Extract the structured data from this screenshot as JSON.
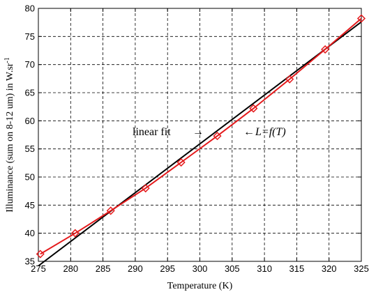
{
  "chart_data": {
    "type": "line",
    "title": "",
    "xlabel": "Temperature (K)",
    "ylabel": "Illuminance (sum on 8-12 um) in W.sr",
    "ylabel_superscript": "-1",
    "xlim": [
      275,
      325
    ],
    "ylim": [
      35,
      80
    ],
    "x_ticks": [
      275,
      280,
      285,
      290,
      295,
      300,
      305,
      310,
      315,
      320,
      325
    ],
    "y_ticks": [
      35,
      40,
      45,
      50,
      55,
      60,
      65,
      70,
      75,
      80
    ],
    "grid": true,
    "series": [
      {
        "color": "#e41a1c",
        "marker": "diamond",
        "x": [
          275.3,
          280.7,
          286.2,
          291.6,
          297.1,
          302.7,
          308.3,
          313.9,
          319.4,
          325.0
        ],
        "y": [
          36.3,
          40.0,
          44.0,
          48.0,
          52.6,
          57.3,
          62.2,
          67.4,
          72.7,
          78.2
        ]
      },
      {
        "color": "#000000",
        "marker": "none",
        "x": [
          275.0,
          325.0
        ],
        "y": [
          34.2,
          77.6
        ]
      }
    ],
    "annotations": [
      {
        "text": "linear fit",
        "arrow": "→"
      },
      {
        "text": "←",
        "italic_text": "L=f(T)"
      }
    ]
  }
}
